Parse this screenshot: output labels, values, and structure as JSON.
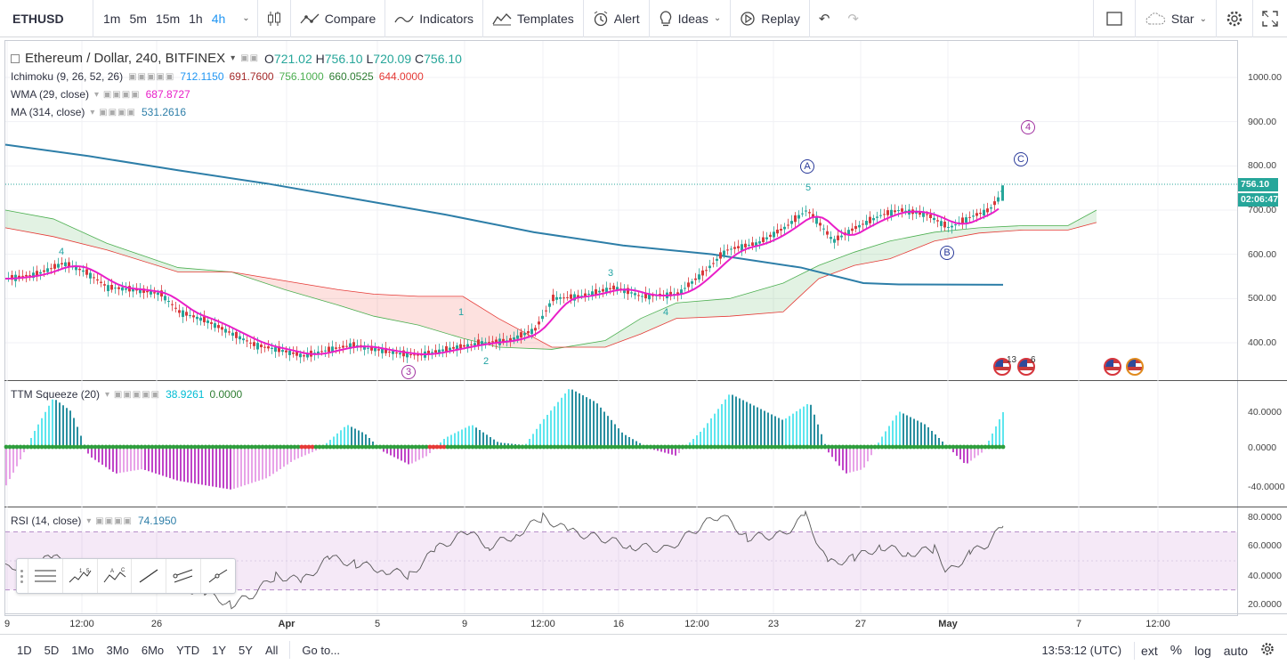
{
  "toolbar": {
    "symbol": "ETHUSD",
    "intervals": [
      "1m",
      "5m",
      "15m",
      "1h",
      "4h"
    ],
    "active_interval": "4h",
    "compare_label": "Compare",
    "indicators_label": "Indicators",
    "templates_label": "Templates",
    "alert_label": "Alert",
    "ideas_label": "Ideas",
    "replay_label": "Replay",
    "star_label": "Star"
  },
  "legend": {
    "title": "Ethereum / Dollar, 240, BITFINEX",
    "open_label": "O",
    "open": "721.02",
    "high_label": "H",
    "high": "756.10",
    "low_label": "L",
    "low": "720.09",
    "close_label": "C",
    "close": "756.10",
    "ichimoku": {
      "name": "Ichimoku (9, 26, 52, 26)",
      "values": [
        "712.1150",
        "691.7600",
        "756.1000",
        "660.0525",
        "644.0000"
      ],
      "colors": [
        "#2196f3",
        "#a52a2a",
        "#4caf50",
        "#2e7d32",
        "#e53935"
      ]
    },
    "wma": {
      "name": "WMA (29, close)",
      "value": "687.8727",
      "color": "#e91ec8"
    },
    "ma": {
      "name": "MA (314, close)",
      "value": "531.2616",
      "color": "#2d7ea8"
    }
  },
  "price_axis": {
    "labels": [
      "1000.00",
      "900.00",
      "800.00",
      "700.00",
      "600.00",
      "500.00",
      "400.00"
    ],
    "last_price": "756.10",
    "countdown": "02:06:47",
    "tag_color": "#26a69a",
    "countdown_color": "#26a69a"
  },
  "squeeze": {
    "name": "TTM Squeeze (20)",
    "value1": "38.9261",
    "value2": "0.0000",
    "labels": [
      "40.0000",
      "0.0000",
      "-40.0000"
    ]
  },
  "rsi": {
    "name": "RSI (14, close)",
    "value": "74.1950",
    "labels": [
      "80.0000",
      "60.0000",
      "40.0000",
      "20.0000"
    ]
  },
  "time_axis": [
    "9",
    "12:00",
    "26",
    "Apr",
    "5",
    "9",
    "12:00",
    "16",
    "12:00",
    "23",
    "27",
    "May",
    "7",
    "12:00"
  ],
  "wave_labels": [
    "4",
    "1",
    "2",
    "3",
    "4",
    "5"
  ],
  "circle_labels": [
    "3",
    "A",
    "4",
    "C",
    "B"
  ],
  "events": [
    "13",
    "6"
  ],
  "bottom": {
    "ranges": [
      "1D",
      "5D",
      "1Mo",
      "3Mo",
      "6Mo",
      "YTD",
      "1Y",
      "5Y",
      "All"
    ],
    "goto": "Go to...",
    "clock": "13:53:12 (UTC)",
    "ext": "ext",
    "percent": "%",
    "log": "log",
    "auto": "auto"
  }
}
